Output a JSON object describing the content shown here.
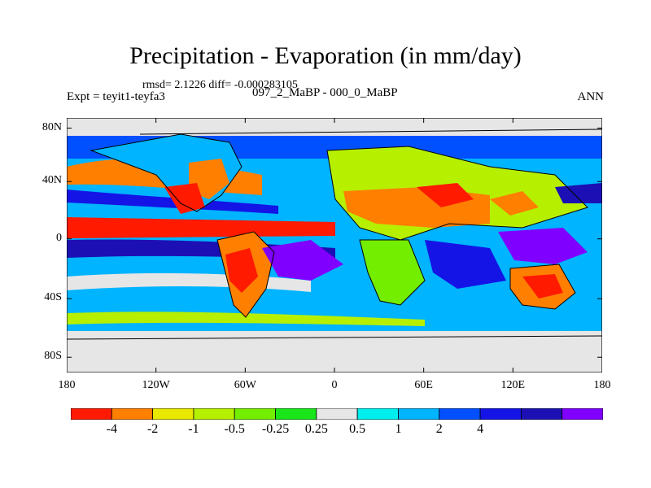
{
  "title": "Precipitation - Evaporation (in mm/day)",
  "stats": "rmsd= 2.1226 diff= -0.000283105",
  "experiment": "Expt = teyit1-teyfa3",
  "period": "097_2_MaBP - 000_0_MaBP",
  "season": "ANN",
  "lat_labels": [
    "80N",
    "40N",
    "0",
    "40S",
    "80S"
  ],
  "lon_labels": [
    "180",
    "120W",
    "60W",
    "0",
    "60E",
    "120E",
    "180"
  ],
  "colorbar": {
    "colors": [
      "#ff1a00",
      "#ff7f00",
      "#e8e800",
      "#b6f000",
      "#73ee00",
      "#19e619",
      "#e6e6e6",
      "#00eeee",
      "#00b4ff",
      "#0050ff",
      "#1414e6",
      "#1c10b4",
      "#8000ff"
    ],
    "labels": [
      "-4",
      "-2",
      "-1",
      "-0.5",
      "-0.25",
      "0.25",
      "0.5",
      "1",
      "2",
      "4"
    ]
  },
  "map_palette": {
    "land_outline": "#000000",
    "ocean_neutral": "#e6e6e6"
  }
}
